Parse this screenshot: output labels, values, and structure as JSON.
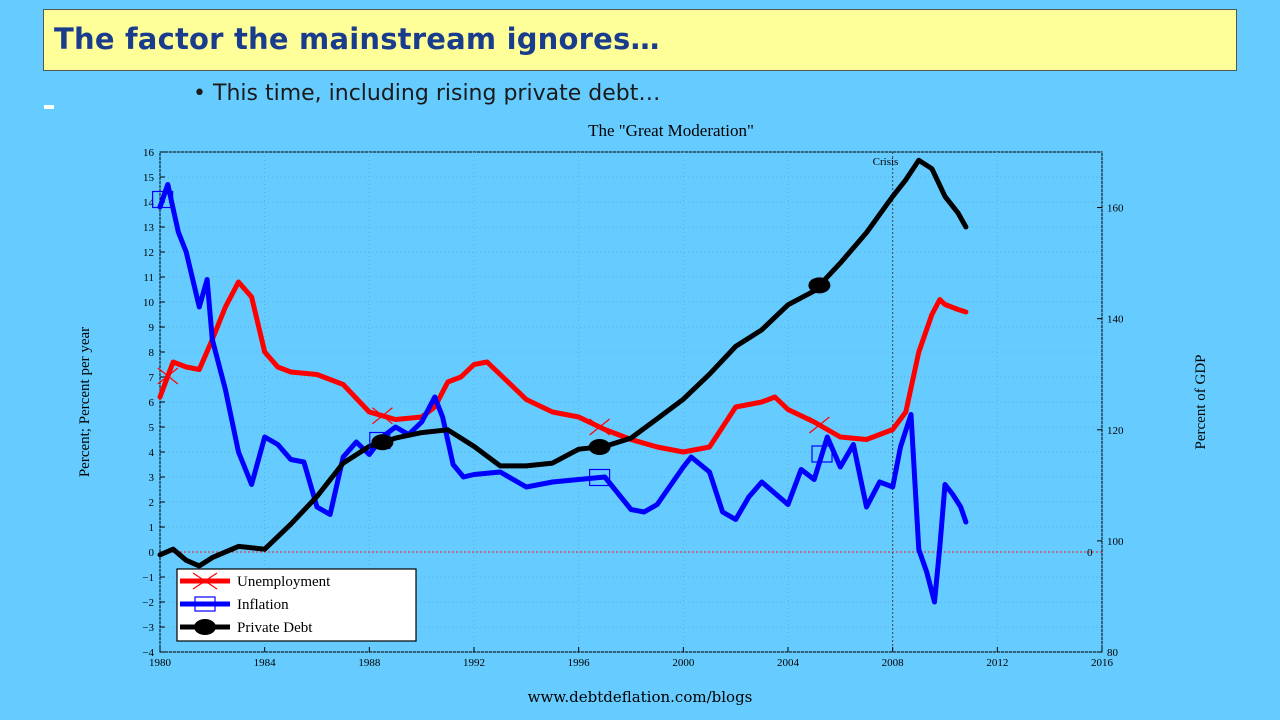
{
  "slide": {
    "title": "The factor the mainstream ignores…",
    "bullet": "This time, including rising private debt…",
    "footer": "www.debtdeflation.com/blogs"
  },
  "colors": {
    "background": "#66ccff",
    "title_box": "#ffff99",
    "title_text": "#1a3c8c",
    "unemployment": "#ff0000",
    "inflation": "#0000ff",
    "private_debt": "#000000"
  },
  "chart_data": {
    "type": "line",
    "title": "The \"Great Moderation\"",
    "ylabel": "Percent; Percent per year",
    "y2label": "Percent of GDP",
    "annotation": "Crisis",
    "annotation_x": 2008,
    "xlim": [
      1980,
      2016
    ],
    "ylim": [
      -4,
      16
    ],
    "y2lim": [
      80,
      170
    ],
    "x_ticks": [
      1980,
      1984,
      1988,
      1992,
      1996,
      2000,
      2004,
      2008,
      2012,
      2016
    ],
    "y_ticks": [
      -4,
      -3,
      -2,
      -1,
      0,
      1,
      2,
      3,
      4,
      5,
      6,
      7,
      8,
      9,
      10,
      11,
      12,
      13,
      14,
      15,
      16
    ],
    "y_tick_labels": [
      "−4",
      "−3",
      "−2",
      "−1",
      "0",
      "1",
      "2",
      "3",
      "4",
      "5",
      "6",
      "7",
      "8",
      "9",
      "10",
      "11",
      "12",
      "13",
      "14",
      "15",
      "16"
    ],
    "y2_ticks": [
      80,
      100,
      120,
      140,
      160
    ],
    "y2_zero_label": "0",
    "grid": true,
    "legend_position": "bottom-left",
    "series": [
      {
        "name": "Unemployment",
        "axis": "left",
        "marker": "x",
        "x": [
          1980,
          1980.5,
          1981,
          1981.5,
          1982,
          1982.5,
          1983,
          1983.5,
          1984,
          1984.5,
          1985,
          1986,
          1987,
          1988,
          1989,
          1990,
          1990.5,
          1991,
          1991.5,
          1992,
          1992.5,
          1993,
          1994,
          1995,
          1996,
          1997,
          1998,
          1999,
          2000,
          2001,
          2002,
          2003,
          2003.5,
          2004,
          2005,
          2006,
          2007,
          2008,
          2008.5,
          2009,
          2009.5,
          2009.8,
          2010,
          2010.5,
          2010.8
        ],
        "y": [
          6.2,
          7.6,
          7.4,
          7.3,
          8.5,
          9.8,
          10.8,
          10.2,
          8.0,
          7.4,
          7.2,
          7.1,
          6.7,
          5.6,
          5.3,
          5.4,
          5.8,
          6.8,
          7.0,
          7.5,
          7.6,
          7.1,
          6.1,
          5.6,
          5.4,
          4.9,
          4.5,
          4.2,
          4.0,
          4.2,
          5.8,
          6.0,
          6.2,
          5.7,
          5.2,
          4.6,
          4.5,
          4.9,
          5.6,
          8.0,
          9.5,
          10.1,
          9.9,
          9.7,
          9.6
        ]
      },
      {
        "name": "Inflation",
        "axis": "left",
        "marker": "square",
        "x": [
          1980,
          1980.3,
          1980.7,
          1981,
          1981.5,
          1981.8,
          1982,
          1982.5,
          1983,
          1983.5,
          1984,
          1984.5,
          1985,
          1985.5,
          1986,
          1986.5,
          1987,
          1987.5,
          1988,
          1988.5,
          1989,
          1989.5,
          1990,
          1990.5,
          1990.8,
          1991.2,
          1991.6,
          1992,
          1993,
          1994,
          1995,
          1996,
          1997,
          1998,
          1998.5,
          1999,
          2000,
          2000.3,
          2001,
          2001.5,
          2002,
          2002.5,
          2003,
          2004,
          2004.5,
          2005,
          2005.5,
          2006,
          2006.5,
          2007,
          2007.5,
          2008,
          2008.3,
          2008.7,
          2009,
          2009.3,
          2009.6,
          2009.8,
          2010,
          2010.3,
          2010.6,
          2010.8
        ],
        "y": [
          13.8,
          14.7,
          12.8,
          12.0,
          9.8,
          10.9,
          8.5,
          6.5,
          4.0,
          2.7,
          4.6,
          4.3,
          3.7,
          3.6,
          1.8,
          1.5,
          3.8,
          4.4,
          3.9,
          4.6,
          5.0,
          4.7,
          5.2,
          6.2,
          5.4,
          3.5,
          3.0,
          3.1,
          3.2,
          2.6,
          2.8,
          2.9,
          3.0,
          1.7,
          1.6,
          1.9,
          3.4,
          3.8,
          3.2,
          1.6,
          1.3,
          2.2,
          2.8,
          1.9,
          3.3,
          2.9,
          4.6,
          3.4,
          4.3,
          1.8,
          2.8,
          2.6,
          4.2,
          5.5,
          0.1,
          -0.8,
          -2.0,
          0.2,
          2.7,
          2.3,
          1.8,
          1.2
        ]
      },
      {
        "name": "Private Debt",
        "axis": "right",
        "marker": "ellipse",
        "x": [
          1980,
          1980.5,
          1981,
          1981.5,
          1982,
          1983,
          1984,
          1985,
          1986,
          1987,
          1988,
          1989,
          1990,
          1991,
          1992,
          1993,
          1994,
          1995,
          1996,
          1997,
          1998,
          1999,
          2000,
          2001,
          2002,
          2003,
          2004,
          2005,
          2006,
          2007,
          2008,
          2008.5,
          2009,
          2009.5,
          2010,
          2010.5,
          2010.8
        ],
        "y": [
          97.5,
          98.5,
          96.5,
          95.5,
          97,
          99,
          98.5,
          103,
          108,
          114,
          117,
          118.5,
          119.5,
          120,
          117,
          113.5,
          113.5,
          114,
          116.5,
          117,
          118.5,
          122,
          125.5,
          130,
          135,
          138,
          142.5,
          145,
          150,
          155.5,
          162,
          165,
          168.5,
          167,
          162,
          159,
          156.5
        ]
      }
    ]
  }
}
